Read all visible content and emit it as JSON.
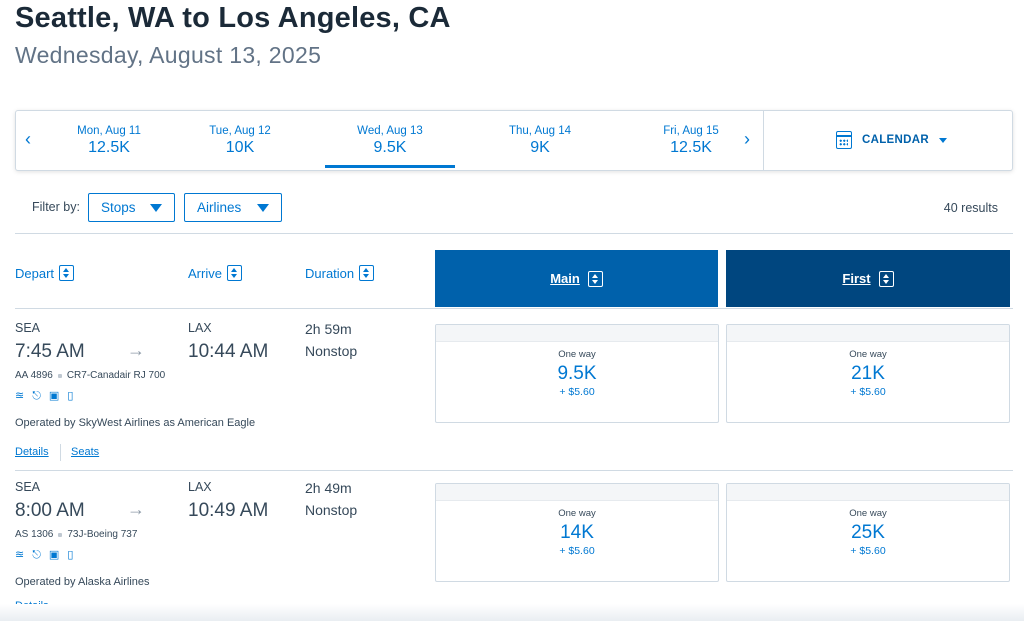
{
  "header": {
    "title": "Seattle, WA to Los Angeles, CA",
    "subtitle": "Wednesday, August 13, 2025"
  },
  "date_strip": {
    "prev_icon": "chevron-left-icon",
    "next_icon": "chevron-right-icon",
    "days": [
      {
        "label": "Mon, Aug 11",
        "value": "12.5K",
        "active": false
      },
      {
        "label": "Tue, Aug 12",
        "value": "10K",
        "active": false
      },
      {
        "label": "Wed, Aug 13",
        "value": "9.5K",
        "active": true
      },
      {
        "label": "Thu, Aug 14",
        "value": "9K",
        "active": false
      },
      {
        "label": "Fri, Aug 15",
        "value": "12.5K",
        "active": false
      }
    ],
    "calendar_label": "CALENDAR"
  },
  "filters": {
    "label": "Filter by:",
    "stops": "Stops",
    "airlines": "Airlines",
    "results": "40 results"
  },
  "columns": {
    "depart": "Depart",
    "arrive": "Arrive",
    "duration": "Duration",
    "main": "Main",
    "first": "First"
  },
  "colors": {
    "accent": "#0078d2",
    "main_header": "#0061ab",
    "first_header": "#00467f"
  },
  "flights": [
    {
      "origin": "SEA",
      "depart_time": "7:45 AM",
      "dest": "LAX",
      "arrive_time": "10:44 AM",
      "duration": "2h 59m",
      "stops": "Nonstop",
      "flight_number": "AA 4896",
      "aircraft": "CR7-Canadair RJ 700",
      "operated_by": "Operated by SkyWest Airlines as American Eagle",
      "details_label": "Details",
      "seats_label": "Seats",
      "main": {
        "label": "One way",
        "miles": "9.5K",
        "tax": "+ $5.60"
      },
      "first": {
        "label": "One way",
        "miles": "21K",
        "tax": "+ $5.60"
      }
    },
    {
      "origin": "SEA",
      "depart_time": "8:00 AM",
      "dest": "LAX",
      "arrive_time": "10:49 AM",
      "duration": "2h 49m",
      "stops": "Nonstop",
      "flight_number": "AS 1306",
      "aircraft": "73J-Boeing 737",
      "operated_by": "Operated by Alaska Airlines",
      "details_label": "Details",
      "main": {
        "label": "One way",
        "miles": "14K",
        "tax": "+ $5.60"
      },
      "first": {
        "label": "One way",
        "miles": "25K",
        "tax": "+ $5.60"
      }
    }
  ]
}
